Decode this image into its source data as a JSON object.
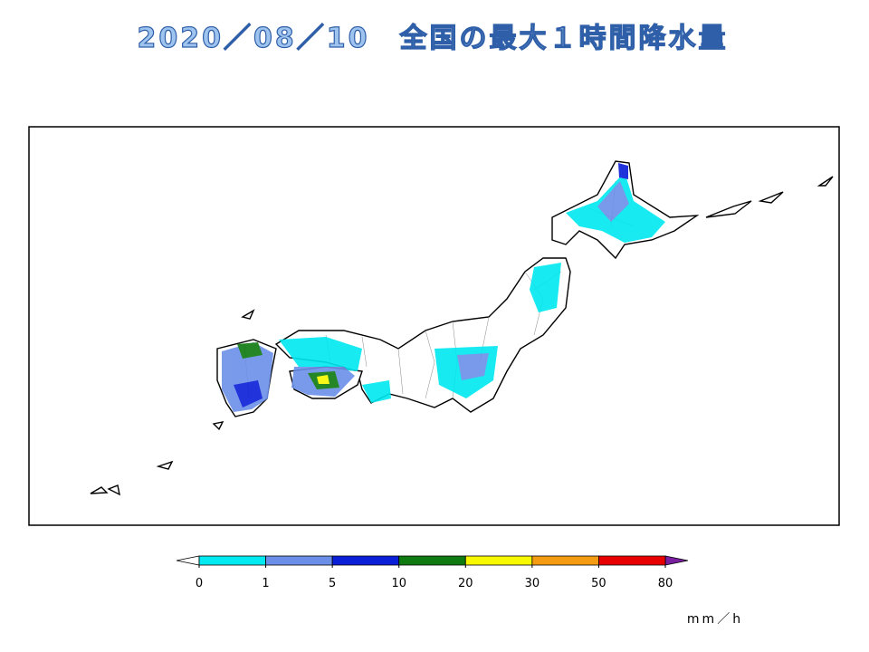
{
  "title": "2020／08／10　全国の最大１時間降水量",
  "colorbar": {
    "levels": [
      0,
      1,
      5,
      10,
      20,
      30,
      50,
      80
    ],
    "colors": [
      "#00e8f0",
      "#6b8fe8",
      "#0a1fd8",
      "#0e7a10",
      "#f8f800",
      "#f39c12",
      "#e80000"
    ],
    "under_color": "#ffffff",
    "over_color": "#7a1fa0",
    "unit": "mm／h"
  }
}
